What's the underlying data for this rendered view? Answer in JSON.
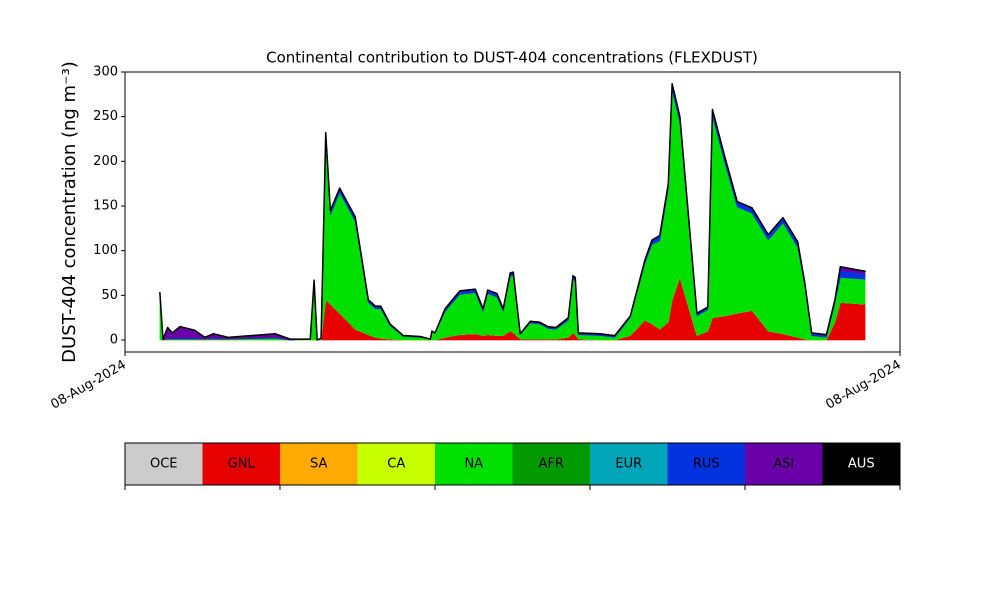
{
  "chart_data": {
    "type": "stacked_area",
    "title": "Continental contribution to DUST-404 concentrations (FLEXDUST)",
    "y_label": "DUST-404 concentration (ng m⁻³)",
    "xlim": [
      0,
      100
    ],
    "xticks": [
      {
        "value": 0,
        "label": "08-Aug-2024"
      },
      {
        "value": 100,
        "label": "08-Aug-2024"
      }
    ],
    "ylim": [
      -13.4,
      300
    ],
    "yticks": [
      0,
      50,
      100,
      150,
      200,
      250,
      300
    ],
    "x": [
      4.5,
      4.9,
      5.5,
      6.1,
      7.1,
      9.0,
      10.3,
      11.4,
      13.3,
      19.4,
      21.3,
      23.9,
      24.4,
      24.8,
      25.3,
      25.9,
      26.5,
      27.7,
      29.7,
      31.4,
      32.3,
      33.0,
      34.2,
      35.9,
      38.1,
      39.4,
      39.6,
      40.0,
      41.3,
      43.2,
      45.2,
      46.2,
      46.8,
      48.0,
      48.8,
      49.7,
      50.1,
      51.0,
      52.3,
      53.5,
      54.6,
      55.6,
      57.2,
      57.8,
      58.1,
      58.5,
      61.3,
      63.2,
      65.2,
      67.1,
      68.0,
      69.0,
      70.1,
      70.6,
      71.6,
      73.8,
      75.2,
      75.8,
      77.4,
      79.0,
      80.9,
      83.0,
      84.9,
      86.8,
      87.7,
      88.6,
      90.5,
      91.6,
      92.3,
      95.5
    ],
    "series": [
      {
        "name": "OCE",
        "color": "#cccccc",
        "values": [
          0,
          0,
          0,
          0,
          0,
          0,
          0,
          0,
          0,
          0,
          0,
          0,
          0,
          0,
          0,
          0,
          0,
          0,
          0,
          0,
          0,
          0,
          0,
          0,
          0,
          0,
          0,
          0,
          0,
          0,
          0,
          0,
          0,
          0,
          0,
          0,
          0,
          0,
          0,
          0,
          0,
          0,
          0,
          0,
          0,
          0,
          0,
          0,
          0,
          0,
          0,
          0,
          0,
          0,
          0,
          0,
          0,
          0,
          0,
          0,
          0,
          0,
          0,
          0,
          0,
          0,
          0,
          0,
          0,
          0
        ]
      },
      {
        "name": "GNL",
        "color": "#e60000",
        "values": [
          0,
          0,
          0,
          0,
          0,
          0,
          0,
          0,
          0,
          0,
          0,
          0,
          0,
          0,
          0,
          45,
          40,
          30,
          12,
          6,
          3,
          2,
          1,
          0,
          0,
          0,
          0,
          0,
          3,
          6,
          7,
          5,
          6,
          5,
          5,
          10,
          8,
          1,
          1,
          1,
          1,
          1,
          3,
          8,
          6,
          1,
          0,
          0,
          5,
          22,
          18,
          12,
          20,
          45,
          70,
          5,
          10,
          25,
          27,
          30,
          33,
          10,
          7,
          3,
          1,
          0,
          0,
          20,
          42,
          40
        ]
      },
      {
        "name": "SA",
        "color": "#ffaa00",
        "values": [
          0,
          0,
          0,
          0,
          0,
          0,
          0,
          0,
          0,
          0,
          0,
          0,
          0,
          0,
          0,
          0,
          0,
          0,
          0,
          0,
          0,
          0,
          0,
          0,
          0,
          0,
          0,
          0,
          0,
          0,
          0,
          0,
          0,
          0,
          0,
          0,
          0,
          0,
          0,
          0,
          0,
          0,
          0,
          0,
          0,
          0,
          0,
          0,
          0,
          0,
          0,
          0,
          0,
          0,
          0,
          0,
          0,
          0,
          0,
          0,
          0,
          0,
          0,
          0,
          0,
          0,
          0,
          0,
          0,
          0
        ]
      },
      {
        "name": "CA",
        "color": "#c8ff00",
        "values": [
          0,
          0,
          0,
          0,
          0,
          0,
          0,
          0,
          0,
          0,
          0,
          0,
          0,
          0,
          0,
          0,
          0,
          0,
          0,
          0,
          0,
          0,
          0,
          0,
          0,
          0,
          0,
          0,
          0,
          0,
          0,
          0,
          0,
          0,
          0,
          0,
          0,
          0,
          0,
          0,
          0,
          0,
          0,
          0,
          0,
          0,
          0,
          0,
          0,
          0,
          0,
          0,
          0,
          0,
          0,
          0,
          0,
          0,
          0,
          0,
          0,
          0,
          0,
          0,
          0,
          0,
          0,
          0,
          0,
          0
        ]
      },
      {
        "name": "NA",
        "color": "#00e000",
        "values": [
          48,
          0,
          1,
          1,
          1,
          1,
          1,
          1,
          1,
          2,
          0,
          1,
          64,
          0,
          2,
          180,
          100,
          135,
          121,
          36,
          32,
          33,
          15,
          4,
          3,
          1,
          9,
          7,
          29,
          45,
          46,
          27,
          46,
          43,
          27,
          61,
          64,
          5,
          18,
          17,
          12,
          11,
          19,
          60,
          60,
          5,
          5,
          3,
          20,
          64,
          89,
          99,
          149,
          235,
          173,
          22,
          24,
          226,
          171,
          119,
          109,
          102,
          124,
          101,
          60,
          5,
          3,
          21,
          28,
          28
        ]
      },
      {
        "name": "AFR",
        "color": "#009a00",
        "values": [
          0,
          0,
          0,
          0,
          0,
          0,
          0,
          0,
          0,
          0,
          0,
          0,
          0,
          0,
          0,
          0,
          0,
          0,
          0,
          0,
          0,
          0,
          0,
          0,
          0,
          0,
          0,
          0,
          0,
          0,
          0,
          0,
          0,
          0,
          0,
          0,
          0,
          0,
          0,
          0,
          0,
          0,
          0,
          0,
          0,
          0,
          0,
          0,
          0,
          0,
          0,
          0,
          0,
          0,
          0,
          0,
          0,
          0,
          0,
          0,
          0,
          0,
          0,
          0,
          0,
          0,
          0,
          0,
          0,
          0
        ]
      },
      {
        "name": "EUR",
        "color": "#00a5b8",
        "values": [
          0,
          0,
          0,
          0,
          0,
          0,
          0,
          0,
          0,
          0,
          0,
          0,
          0,
          0,
          0,
          0,
          0,
          0,
          0,
          0,
          0,
          0,
          0,
          0,
          0,
          0,
          0,
          0,
          0,
          0,
          0,
          0,
          0,
          0,
          0,
          0,
          0,
          0,
          0,
          0,
          0,
          0,
          0,
          0,
          0,
          0,
          0,
          0,
          0,
          0,
          0,
          0,
          0,
          0,
          0,
          0,
          0,
          0,
          0,
          0,
          0,
          0,
          0,
          0,
          0,
          0,
          0,
          0,
          0,
          0
        ]
      },
      {
        "name": "RUS",
        "color": "#0032e0",
        "values": [
          2,
          0,
          1,
          1,
          1,
          1,
          0,
          1,
          0,
          1,
          0,
          0,
          2,
          0,
          0,
          5,
          4,
          4,
          4,
          2,
          2,
          2,
          1,
          1,
          1,
          0,
          1,
          1,
          2,
          3,
          3,
          2,
          3,
          3,
          2,
          3,
          3,
          1,
          1,
          1,
          1,
          1,
          2,
          3,
          3,
          1,
          1,
          1,
          1,
          3,
          4,
          5,
          5,
          6,
          6,
          2,
          2,
          6,
          6,
          5,
          5,
          5,
          5,
          5,
          3,
          2,
          2,
          3,
          8,
          6
        ]
      },
      {
        "name": "ASI",
        "color": "#6a00a8",
        "values": [
          3,
          1,
          12,
          6,
          13,
          9,
          2,
          5,
          2,
          4,
          1,
          0,
          1,
          0,
          0,
          2,
          1,
          1,
          1,
          1,
          1,
          1,
          1,
          0,
          0,
          0,
          0,
          0,
          1,
          1,
          1,
          1,
          1,
          1,
          1,
          1,
          1,
          0,
          1,
          1,
          1,
          1,
          1,
          1,
          1,
          1,
          1,
          1,
          1,
          1,
          1,
          1,
          1,
          1,
          1,
          1,
          1,
          1,
          1,
          1,
          1,
          1,
          1,
          1,
          1,
          1,
          1,
          1,
          4,
          3
        ]
      },
      {
        "name": "AUS",
        "color": "#000000",
        "values": [
          0,
          0,
          0,
          0,
          0,
          0,
          0,
          0,
          0,
          0,
          0,
          0,
          0,
          0,
          0,
          0,
          0,
          0,
          0,
          0,
          0,
          0,
          0,
          0,
          0,
          0,
          0,
          0,
          0,
          0,
          0,
          0,
          0,
          0,
          0,
          0,
          0,
          0,
          0,
          0,
          0,
          0,
          0,
          0,
          0,
          0,
          0,
          0,
          0,
          0,
          0,
          0,
          0,
          0,
          0,
          0,
          0,
          0,
          0,
          0,
          0,
          0,
          0,
          0,
          0,
          0,
          0,
          0,
          0,
          0
        ]
      }
    ]
  }
}
